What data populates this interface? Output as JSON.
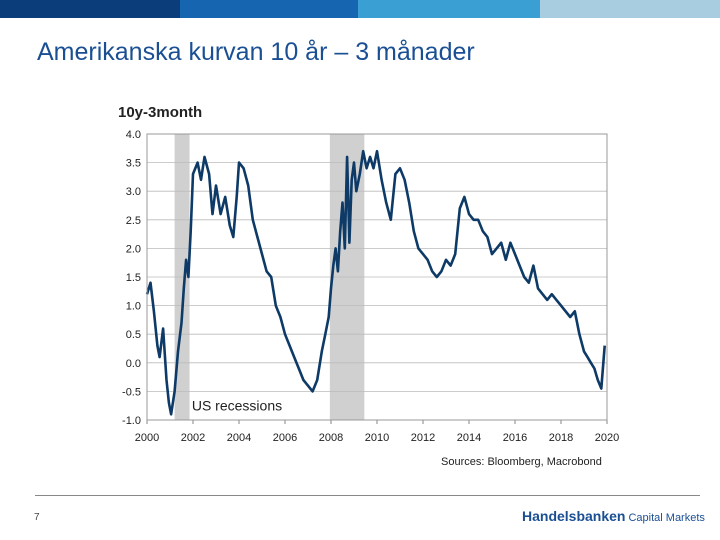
{
  "header": {
    "bar_colors": [
      "#0a3d7a",
      "#1565b0",
      "#3aa0d4",
      "#a9cde0"
    ]
  },
  "slide": {
    "title": "Amerikanska kurvan 10 år – 3 månader",
    "page_number": "7"
  },
  "footer": {
    "brand_name": "Handelsbanken",
    "brand_suffix": "Capital Markets"
  },
  "chart_data": {
    "type": "line",
    "title": "10y-3month",
    "xlabel": "",
    "ylabel": "",
    "xlim": [
      2000,
      2020
    ],
    "ylim": [
      -1.0,
      4.0
    ],
    "x_ticks": [
      "2000",
      "2002",
      "2004",
      "2006",
      "2008",
      "2010",
      "2012",
      "2014",
      "2016",
      "2018",
      "2020"
    ],
    "y_ticks": [
      "4.0",
      "3.5",
      "3.0",
      "2.5",
      "2.0",
      "1.5",
      "1.0",
      "0.5",
      "0.0",
      "-0.5",
      "-1.0"
    ],
    "grid": true,
    "line_color": "#0d3a66",
    "recession_color": "#d0d0d0",
    "recessions": [
      [
        2001.2,
        2001.85
      ],
      [
        2007.95,
        2009.45
      ]
    ],
    "annotation": "US recessions",
    "source": "Sources: Bloomberg, Macrobond",
    "series": [
      {
        "x": [
          2000.0,
          2000.15,
          2000.3,
          2000.45,
          2000.55,
          2000.7,
          2000.85,
          2000.95,
          2001.05,
          2001.2,
          2001.35,
          2001.5,
          2001.6,
          2001.7,
          2001.8,
          2001.9,
          2002.0,
          2002.2,
          2002.35,
          2002.5,
          2002.7,
          2002.85,
          2003.0,
          2003.2,
          2003.4,
          2003.6,
          2003.75,
          2003.9,
          2004.0,
          2004.2,
          2004.4,
          2004.6,
          2004.8,
          2005.0,
          2005.2,
          2005.4,
          2005.6,
          2005.8,
          2006.0,
          2006.2,
          2006.4,
          2006.6,
          2006.8,
          2007.0,
          2007.2,
          2007.4,
          2007.6,
          2007.75,
          2007.9,
          2008.0,
          2008.1,
          2008.2,
          2008.3,
          2008.4,
          2008.5,
          2008.6,
          2008.7,
          2008.8,
          2008.9,
          2009.0,
          2009.1,
          2009.25,
          2009.4,
          2009.55,
          2009.7,
          2009.85,
          2010.0,
          2010.2,
          2010.4,
          2010.6,
          2010.8,
          2011.0,
          2011.2,
          2011.4,
          2011.6,
          2011.8,
          2012.0,
          2012.2,
          2012.4,
          2012.6,
          2012.8,
          2013.0,
          2013.2,
          2013.4,
          2013.6,
          2013.8,
          2014.0,
          2014.2,
          2014.4,
          2014.6,
          2014.8,
          2015.0,
          2015.2,
          2015.4,
          2015.6,
          2015.8,
          2016.0,
          2016.2,
          2016.4,
          2016.6,
          2016.8,
          2017.0,
          2017.2,
          2017.4,
          2017.6,
          2017.8,
          2018.0,
          2018.2,
          2018.4,
          2018.6,
          2018.8,
          2019.0,
          2019.15,
          2019.3,
          2019.45,
          2019.6,
          2019.75,
          2019.9
        ],
        "values": [
          1.2,
          1.4,
          0.9,
          0.3,
          0.1,
          0.6,
          -0.3,
          -0.7,
          -0.9,
          -0.5,
          0.2,
          0.7,
          1.3,
          1.8,
          1.5,
          2.3,
          3.3,
          3.5,
          3.2,
          3.6,
          3.3,
          2.6,
          3.1,
          2.6,
          2.9,
          2.4,
          2.2,
          2.9,
          3.5,
          3.4,
          3.1,
          2.5,
          2.2,
          1.9,
          1.6,
          1.5,
          1.0,
          0.8,
          0.5,
          0.3,
          0.1,
          -0.1,
          -0.3,
          -0.4,
          -0.5,
          -0.3,
          0.2,
          0.5,
          0.8,
          1.3,
          1.7,
          2.0,
          1.6,
          2.3,
          2.8,
          2.0,
          3.6,
          2.1,
          3.2,
          3.5,
          3.0,
          3.3,
          3.7,
          3.4,
          3.6,
          3.4,
          3.7,
          3.2,
          2.8,
          2.5,
          3.3,
          3.4,
          3.2,
          2.8,
          2.3,
          2.0,
          1.9,
          1.8,
          1.6,
          1.5,
          1.6,
          1.8,
          1.7,
          1.9,
          2.7,
          2.9,
          2.6,
          2.5,
          2.5,
          2.3,
          2.2,
          1.9,
          2.0,
          2.1,
          1.8,
          2.1,
          1.9,
          1.7,
          1.5,
          1.4,
          1.7,
          1.3,
          1.2,
          1.1,
          1.2,
          1.1,
          1.0,
          0.9,
          0.8,
          0.9,
          0.5,
          0.2,
          0.1,
          0.0,
          -0.1,
          -0.3,
          -0.45,
          0.3
        ]
      }
    ]
  }
}
